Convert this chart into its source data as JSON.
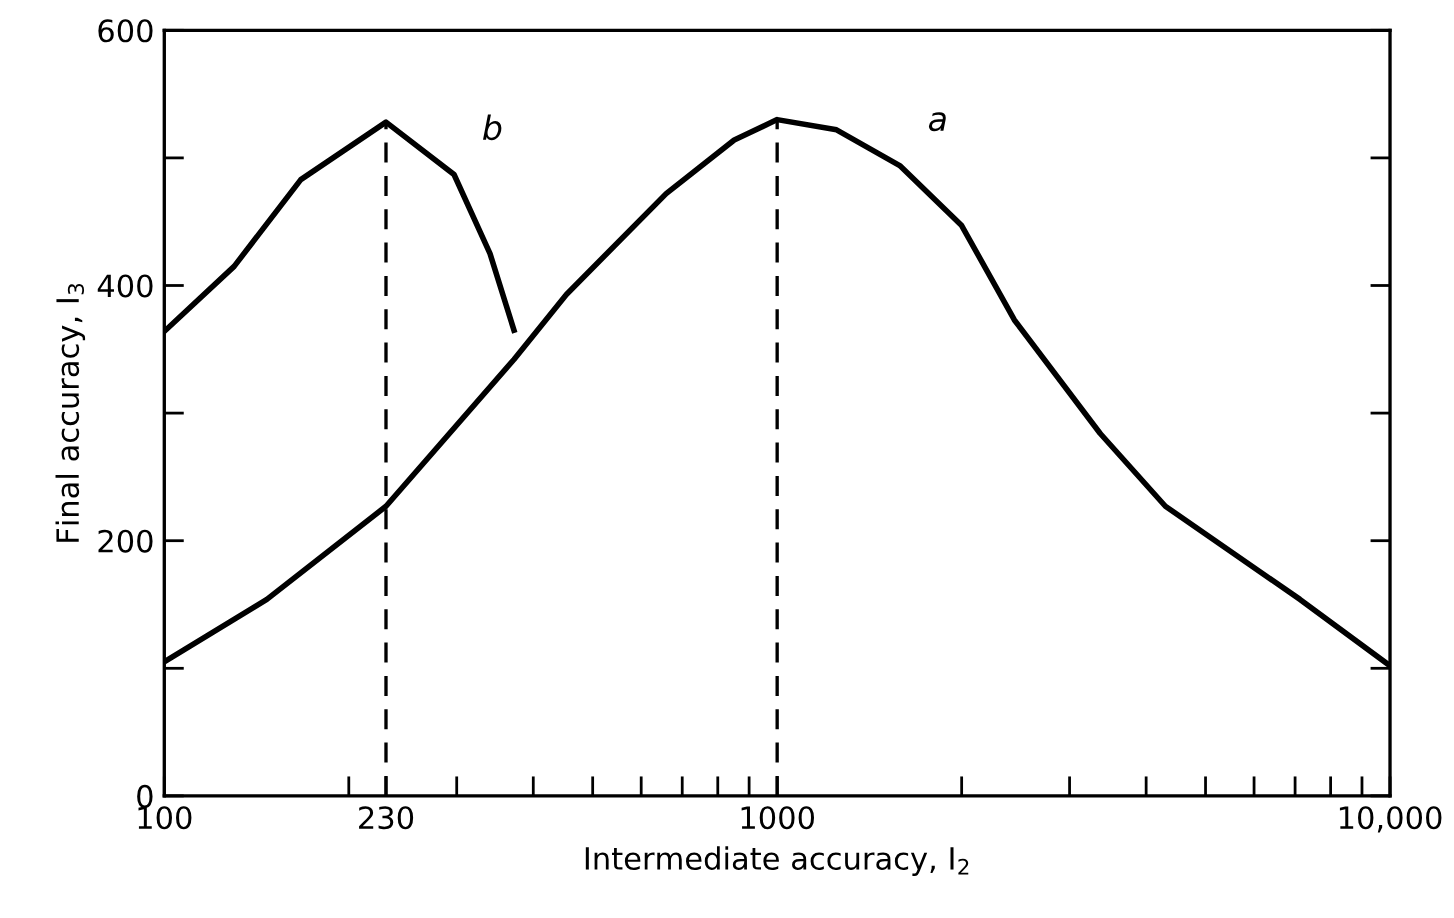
{
  "chart_data": {
    "type": "line",
    "xlabel": "Intermediate accuracy, I$_{2}$",
    "ylabel": "Final accuracy, I$_{3}$",
    "log": "x",
    "xlim": [
      100,
      10000
    ],
    "ylim": [
      0,
      600
    ],
    "xticks": [
      100,
      {
        "value": 200,
        "label": null
      },
      230,
      {
        "value": 300,
        "label": null
      },
      {
        "value": 400,
        "label": null
      },
      {
        "value": 500,
        "label": null
      },
      {
        "value": 600,
        "label": null
      },
      {
        "value": 700,
        "label": null
      },
      {
        "value": 800,
        "label": null
      },
      {
        "value": 900,
        "label": null
      },
      1000,
      {
        "value": 2000,
        "label": null
      },
      {
        "value": 3000,
        "label": null
      },
      {
        "value": 4000,
        "label": null
      },
      {
        "value": 5000,
        "label": null
      },
      {
        "value": 6000,
        "label": null
      },
      {
        "value": 7000,
        "label": null
      },
      {
        "value": 8000,
        "label": null
      },
      {
        "value": 9000,
        "label": null
      },
      {
        "value": 10000,
        "label": "10,000"
      }
    ],
    "yticks": [
      0,
      {
        "value": 100,
        "label": null
      },
      200,
      {
        "value": 300,
        "label": null
      },
      400,
      {
        "value": 500,
        "label": null
      },
      600
    ],
    "series": [
      {
        "name": "a",
        "color": "#000000",
        "x": [
          100,
          147,
          230,
          372,
          453,
          659,
          851,
          1000,
          1250,
          1585,
          2000,
          2438,
          3366,
          4300,
          5556,
          7130,
          10000
        ],
        "values": [
          105,
          154,
          227,
          342,
          393,
          472,
          514,
          530,
          522,
          494,
          447,
          373,
          284,
          227,
          190,
          154,
          102
        ]
      },
      {
        "name": "b",
        "color": "#000000",
        "x": [
          100,
          130,
          167,
          230,
          297,
          340,
          372
        ],
        "values": [
          364,
          415,
          483,
          528,
          487,
          425,
          365
        ]
      }
    ],
    "ref_lines": [
      {
        "axis": "x",
        "value": 230,
        "label": null,
        "line_style": "dashed"
      },
      {
        "axis": "x",
        "value": 1000,
        "label": null,
        "line_style": "dashed"
      }
    ],
    "grid": false,
    "legend": false,
    "marker": "none",
    "line_style": "solid"
  }
}
